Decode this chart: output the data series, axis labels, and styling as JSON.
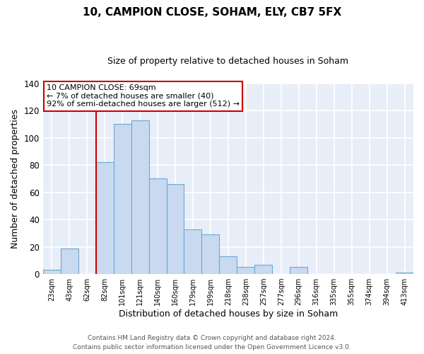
{
  "title": "10, CAMPION CLOSE, SOHAM, ELY, CB7 5FX",
  "subtitle": "Size of property relative to detached houses in Soham",
  "xlabel": "Distribution of detached houses by size in Soham",
  "ylabel": "Number of detached properties",
  "bar_color": "#c8d9f0",
  "bar_edge_color": "#6aaad4",
  "bin_labels": [
    "23sqm",
    "43sqm",
    "62sqm",
    "82sqm",
    "101sqm",
    "121sqm",
    "140sqm",
    "160sqm",
    "179sqm",
    "199sqm",
    "218sqm",
    "238sqm",
    "257sqm",
    "277sqm",
    "296sqm",
    "316sqm",
    "335sqm",
    "355sqm",
    "374sqm",
    "394sqm",
    "413sqm"
  ],
  "bar_heights": [
    3,
    19,
    0,
    82,
    110,
    113,
    70,
    66,
    33,
    29,
    13,
    5,
    7,
    0,
    5,
    0,
    0,
    0,
    0,
    0,
    1
  ],
  "ylim": [
    0,
    140
  ],
  "yticks": [
    0,
    20,
    40,
    60,
    80,
    100,
    120,
    140
  ],
  "vline_x_idx": 2,
  "vline_color": "#cc0000",
  "annotation_title": "10 CAMPION CLOSE: 69sqm",
  "annotation_line2": "← 7% of detached houses are smaller (40)",
  "annotation_line3": "92% of semi-detached houses are larger (512) →",
  "annotation_box_color": "#ffffff",
  "annotation_box_edge": "#cc0000",
  "footer1": "Contains HM Land Registry data © Crown copyright and database right 2024.",
  "footer2": "Contains public sector information licensed under the Open Government Licence v3.0.",
  "plot_bg_color": "#e8eef8",
  "fig_bg_color": "#ffffff",
  "grid_color": "#ffffff"
}
